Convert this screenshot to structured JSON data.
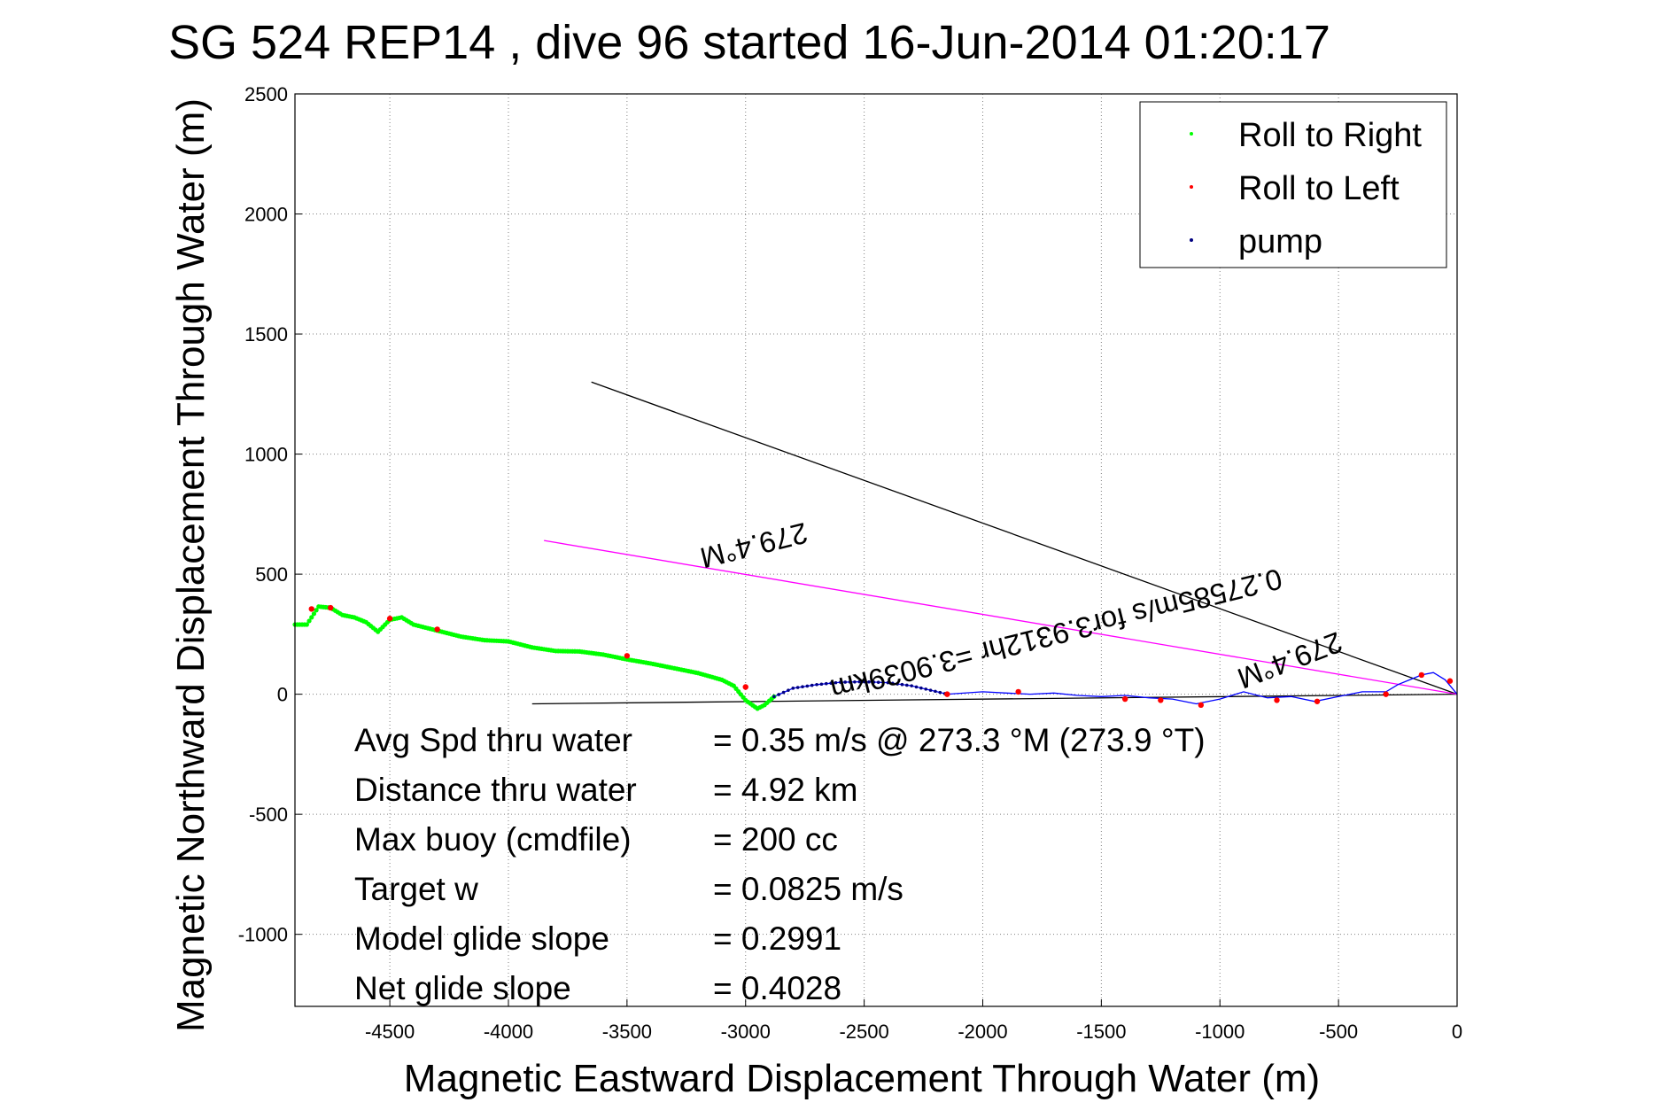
{
  "chart_data": {
    "type": "line",
    "title": "SG 524   REP14  , dive 96 started 16-Jun-2014 01:20:17",
    "xlabel": "Magnetic Eastward Displacement Through Water (m)",
    "ylabel": "Magnetic Northward Displacement Through Water (m)",
    "xlim": [
      -4900,
      0
    ],
    "ylim": [
      -1300,
      2500
    ],
    "xticks": [
      -4500,
      -4000,
      -3500,
      -3000,
      -2500,
      -2000,
      -1500,
      -1000,
      -500,
      0
    ],
    "yticks": [
      2500,
      2000,
      1500,
      1000,
      500,
      0,
      -500,
      -1000
    ],
    "grid": true,
    "legend": {
      "position": "top-right",
      "entries": [
        {
          "label": "Roll to Right",
          "color": "#00ff00"
        },
        {
          "label": "Roll to Left",
          "color": "#ff0000"
        },
        {
          "label": "pump",
          "color": "#000080"
        }
      ]
    },
    "track": {
      "name": "track",
      "color": "#0000ff",
      "x": [
        -4900,
        -4850,
        -4800,
        -4750,
        -4700,
        -4650,
        -4600,
        -4550,
        -4500,
        -4450,
        -4400,
        -4300,
        -4200,
        -4100,
        -4000,
        -3900,
        -3800,
        -3700,
        -3600,
        -3500,
        -3400,
        -3300,
        -3200,
        -3100,
        -3050,
        -3000,
        -2950,
        -2920,
        -2880,
        -2800,
        -2700,
        -2600,
        -2500,
        -2400,
        -2300,
        -2200,
        -2150,
        -2000,
        -1900,
        -1800,
        -1700,
        -1600,
        -1500,
        -1400,
        -1300,
        -1200,
        -1100,
        -1000,
        -900,
        -800,
        -700,
        -600,
        -500,
        -400,
        -300,
        -250,
        -200,
        -150,
        -100,
        -50,
        0
      ],
      "y": [
        290,
        290,
        365,
        360,
        330,
        320,
        300,
        260,
        310,
        320,
        290,
        265,
        240,
        225,
        220,
        195,
        180,
        178,
        165,
        145,
        128,
        108,
        88,
        60,
        35,
        -25,
        -60,
        -45,
        -10,
        25,
        40,
        50,
        52,
        48,
        35,
        12,
        0,
        10,
        5,
        0,
        5,
        -5,
        -10,
        -5,
        -15,
        -20,
        -40,
        -20,
        10,
        -15,
        -10,
        -30,
        -10,
        10,
        10,
        40,
        60,
        80,
        90,
        60,
        0
      ]
    },
    "roll_right_x_range": [
      -4900,
      -2880
    ],
    "pump_x_range": [
      -2880,
      -2150
    ],
    "roll_left_points": {
      "x": [
        -4830,
        -4750,
        -4500,
        -4300,
        -3500,
        -3000,
        -2150,
        -1850,
        -1400,
        -1250,
        -1080,
        -760,
        -590,
        -300,
        -150,
        -30
      ],
      "y": [
        355,
        360,
        315,
        270,
        160,
        30,
        0,
        10,
        -20,
        -25,
        -45,
        -25,
        -30,
        0,
        80,
        55
      ]
    },
    "lines": [
      {
        "name": "black-upper-line",
        "color": "#000000",
        "x": [
          -3650,
          0
        ],
        "y": [
          1300,
          0
        ]
      },
      {
        "name": "black-horizontal-line",
        "color": "#000000",
        "x": [
          -3900,
          0
        ],
        "y": [
          -40,
          0
        ]
      },
      {
        "name": "magenta-line",
        "color": "#ff00ff",
        "x": [
          -3850,
          0
        ],
        "y": [
          640,
          0
        ]
      }
    ],
    "heading_labels": [
      {
        "text": "279.4°M",
        "x": -2975,
        "y": 660
      },
      {
        "text": "279.4°M",
        "x": -720,
        "y": 180
      },
      {
        "text": "0.27585m/s for3.9312hr =3.9039km",
        "x": -1700,
        "y": 290
      }
    ],
    "stats": [
      {
        "label": "Avg Spd thru water",
        "value": "=  0.35 m/s @ 273.3 °M (273.9 °T)"
      },
      {
        "label": "Distance thru water",
        "value": "=  4.92 km"
      },
      {
        "label": "Max buoy (cmdfile)",
        "value": "= 200 cc"
      },
      {
        "label": "Target w",
        "value": "= 0.0825 m/s"
      },
      {
        "label": "Model glide slope",
        "value": "= 0.2991"
      },
      {
        "label": "Net glide slope",
        "value": "= 0.4028"
      }
    ]
  }
}
